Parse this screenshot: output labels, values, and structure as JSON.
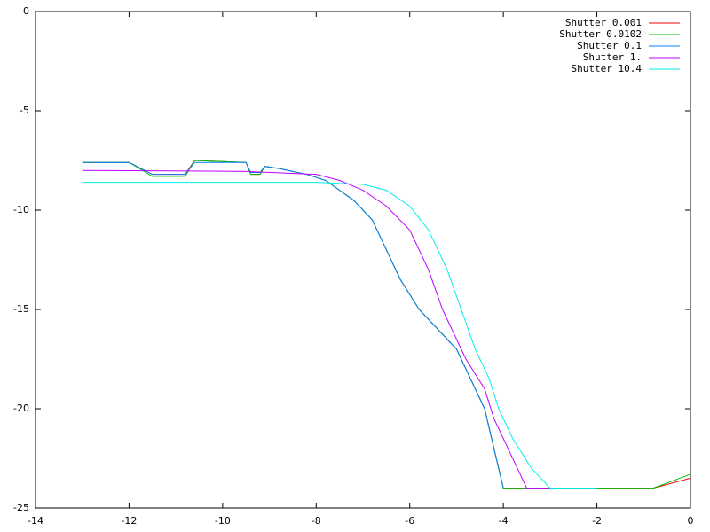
{
  "chart_data": {
    "type": "line",
    "xlim": [
      -14,
      0
    ],
    "ylim": [
      -25,
      0
    ],
    "xticks": [
      -14,
      -12,
      -10,
      -8,
      -6,
      -4,
      -2,
      0
    ],
    "yticks": [
      0,
      -5,
      -10,
      -15,
      -20,
      -25
    ],
    "grid": false,
    "legend": "top-right",
    "series": [
      {
        "name": "Shutter 0.001",
        "color": "#ff0000",
        "x": [
          -13,
          -12,
          -11.5,
          -10.8,
          -10.6,
          -9.5,
          -9.4,
          -9.2,
          -9.1,
          -8.8,
          -8.2,
          -7.8,
          -7.5,
          -7.2,
          -6.8,
          -6.5,
          -6.2,
          -5.8,
          -5.4,
          -5.0,
          -4.8,
          -4.6,
          -4.4,
          -4.3,
          -4.2,
          -4.1,
          -4.0,
          -3.0,
          -0.8,
          0
        ],
        "values": [
          -7.6,
          -7.6,
          -8.2,
          -8.2,
          -7.5,
          -7.6,
          -8.2,
          -8.2,
          -7.8,
          -7.9,
          -8.2,
          -8.5,
          -9.0,
          -9.5,
          -10.5,
          -12,
          -13.5,
          -15,
          -16,
          -17,
          -18,
          -19,
          -20,
          -21,
          -22,
          -23,
          -24,
          -24,
          -24,
          -23.5
        ]
      },
      {
        "name": "Shutter 0.0102",
        "color": "#00c000",
        "x": [
          -13,
          -12,
          -11.5,
          -10.8,
          -10.6,
          -9.5,
          -9.4,
          -9.2,
          -9.1,
          -8.8,
          -8.2,
          -7.8,
          -7.5,
          -7.2,
          -6.8,
          -6.5,
          -6.2,
          -5.8,
          -5.4,
          -5.0,
          -4.8,
          -4.6,
          -4.4,
          -4.3,
          -4.2,
          -4.1,
          -4.0,
          -3.0,
          -0.8,
          0
        ],
        "values": [
          -7.6,
          -7.6,
          -8.3,
          -8.3,
          -7.5,
          -7.6,
          -8.2,
          -8.2,
          -7.8,
          -7.9,
          -8.2,
          -8.5,
          -9.0,
          -9.5,
          -10.5,
          -12,
          -13.5,
          -15,
          -16,
          -17,
          -18,
          -19,
          -20,
          -21,
          -22,
          -23,
          -24,
          -24,
          -24,
          -23.3
        ]
      },
      {
        "name": "Shutter 0.1",
        "color": "#0080ff",
        "x": [
          -13,
          -12,
          -11.5,
          -10.8,
          -10.6,
          -9.5,
          -9.4,
          -9.2,
          -9.1,
          -8.8,
          -8.2,
          -7.8,
          -7.5,
          -7.2,
          -6.8,
          -6.5,
          -6.2,
          -5.8,
          -5.4,
          -5.0,
          -4.8,
          -4.6,
          -4.4,
          -4.3,
          -4.2,
          -4.1,
          -4.0
        ],
        "values": [
          -7.6,
          -7.6,
          -8.2,
          -8.2,
          -7.6,
          -7.6,
          -8.1,
          -8.1,
          -7.8,
          -7.9,
          -8.2,
          -8.5,
          -9.0,
          -9.5,
          -10.5,
          -12,
          -13.5,
          -15,
          -16,
          -17,
          -18,
          -19,
          -20,
          -21,
          -22,
          -23,
          -24
        ]
      },
      {
        "name": "Shutter 1.",
        "color": "#c000ff",
        "x": [
          -13,
          -9.5,
          -8,
          -7.5,
          -7,
          -6.5,
          -6.0,
          -5.6,
          -5.3,
          -5.0,
          -4.8,
          -4.4,
          -4.2,
          -3.9,
          -3.7,
          -3.5,
          -3.0
        ],
        "values": [
          -8.0,
          -8.05,
          -8.2,
          -8.5,
          -9.0,
          -9.8,
          -11,
          -13,
          -15,
          -16.5,
          -17.5,
          -19,
          -20.5,
          -22,
          -23,
          -24,
          -24
        ]
      },
      {
        "name": "Shutter 10.4",
        "color": "#00eeee",
        "x": [
          -13,
          -8,
          -7,
          -6.5,
          -6,
          -5.6,
          -5.2,
          -4.9,
          -4.6,
          -4.3,
          -4.1,
          -3.8,
          -3.4,
          -3.0,
          -2.0
        ],
        "values": [
          -8.6,
          -8.6,
          -8.7,
          -9.0,
          -9.8,
          -11,
          -13,
          -15,
          -17,
          -18.5,
          -20,
          -21.5,
          -23,
          -24,
          -24
        ]
      }
    ]
  }
}
